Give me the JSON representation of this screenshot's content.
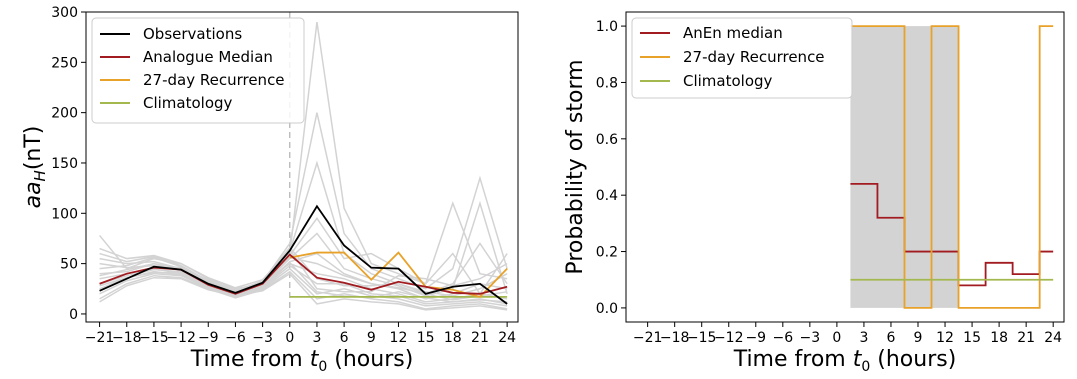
{
  "chart_data": [
    {
      "type": "line",
      "ylabel_main": "aa",
      "ylabel_sub": "H",
      "ylabel_tail": "(nT)",
      "xlabel_main": "Time from ",
      "xlabel_var": "t",
      "xlabel_sub": "0",
      "xlabel_tail": " (hours)",
      "xlim": [
        -22.5,
        25.2
      ],
      "ylim": [
        -8,
        300
      ],
      "xticks": [
        -21,
        -18,
        -15,
        -12,
        -9,
        -6,
        -3,
        0,
        3,
        6,
        9,
        12,
        15,
        18,
        21,
        24
      ],
      "xtick_labels": [
        "−21",
        "−18",
        "−15",
        "−12",
        "−9",
        "−6",
        "−3",
        "0",
        "3",
        "6",
        "9",
        "12",
        "15",
        "18",
        "21",
        "24"
      ],
      "yticks": [
        0,
        50,
        100,
        150,
        200,
        250,
        300
      ],
      "ytick_labels": [
        "0",
        "50",
        "100",
        "150",
        "200",
        "250",
        "300"
      ],
      "t0_line_x": 0,
      "legend_position": "upper-left",
      "colors": {
        "observations": "#000000",
        "analogue": "#a21b21",
        "recurrence": "#e8a229",
        "climatology": "#a3b84e",
        "ensemble": "#d3d3d3",
        "vline": "#b0b0b0"
      },
      "x": [
        -21,
        -18,
        -15,
        -12,
        -9,
        -6,
        -3,
        0,
        3,
        6,
        9,
        12,
        15,
        18,
        21,
        24
      ],
      "series": [
        {
          "name": "Observations",
          "key": "observations",
          "values": [
            23,
            35,
            47,
            44,
            30,
            21,
            31,
            63,
            107,
            68,
            46,
            45,
            20,
            27,
            30,
            10
          ]
        },
        {
          "name": "Analogue Median",
          "key": "analogue",
          "values": [
            30,
            40,
            46,
            44,
            29,
            20,
            30,
            59,
            36,
            31,
            24,
            32,
            27,
            21,
            20,
            27
          ]
        },
        {
          "name": "27-day Recurrence",
          "key": "recurrence",
          "values": [
            null,
            null,
            null,
            null,
            null,
            null,
            null,
            56,
            61,
            61,
            34,
            61,
            27,
            24,
            17,
            45
          ]
        },
        {
          "name": "Climatology",
          "key": "climatology",
          "x": [
            0,
            24
          ],
          "values": [
            17,
            17
          ]
        }
      ],
      "ensemble_members": [
        [
          78,
          45,
          55,
          50,
          35,
          25,
          30,
          60,
          290,
          105,
          50,
          40,
          30,
          60,
          20,
          60
        ],
        [
          60,
          52,
          57,
          48,
          33,
          24,
          32,
          70,
          200,
          80,
          45,
          35,
          25,
          45,
          135,
          45
        ],
        [
          55,
          50,
          52,
          45,
          34,
          22,
          28,
          62,
          150,
          60,
          40,
          30,
          20,
          30,
          70,
          30
        ],
        [
          45,
          48,
          56,
          47,
          30,
          20,
          30,
          58,
          95,
          55,
          60,
          45,
          30,
          110,
          40,
          35
        ],
        [
          40,
          42,
          50,
          43,
          31,
          23,
          29,
          55,
          80,
          45,
          35,
          28,
          18,
          25,
          110,
          20
        ],
        [
          35,
          40,
          45,
          40,
          28,
          19,
          27,
          52,
          60,
          40,
          30,
          25,
          15,
          20,
          30,
          25
        ],
        [
          30,
          38,
          44,
          42,
          29,
          21,
          31,
          50,
          40,
          35,
          25,
          20,
          12,
          15,
          20,
          15
        ],
        [
          25,
          36,
          42,
          39,
          27,
          18,
          26,
          48,
          30,
          30,
          20,
          18,
          10,
          12,
          15,
          10
        ],
        [
          20,
          33,
          40,
          38,
          26,
          17,
          25,
          45,
          20,
          25,
          18,
          15,
          8,
          10,
          12,
          8
        ],
        [
          15,
          30,
          38,
          36,
          25,
          16,
          24,
          42,
          15,
          20,
          15,
          12,
          5,
          8,
          10,
          5
        ],
        [
          50,
          46,
          48,
          46,
          32,
          22,
          33,
          66,
          35,
          28,
          28,
          30,
          22,
          18,
          25,
          40
        ],
        [
          65,
          55,
          58,
          50,
          36,
          26,
          34,
          64,
          25,
          22,
          22,
          38,
          35,
          28,
          35,
          50
        ],
        [
          12,
          28,
          36,
          35,
          24,
          18,
          23,
          40,
          10,
          15,
          12,
          10,
          4,
          6,
          8,
          4
        ],
        [
          38,
          44,
          50,
          45,
          30,
          21,
          28,
          56,
          50,
          38,
          30,
          26,
          20,
          14,
          18,
          22
        ],
        [
          28,
          36,
          41,
          41,
          28,
          19,
          26,
          51,
          22,
          18,
          16,
          22,
          16,
          12,
          14,
          12
        ]
      ]
    },
    {
      "type": "line",
      "ylabel": "Probability of storm",
      "xlabel_main": "Time from ",
      "xlabel_var": "t",
      "xlabel_sub": "0",
      "xlabel_tail": " (hours)",
      "xlim": [
        -23.4,
        25.2
      ],
      "ylim": [
        -0.05,
        1.05
      ],
      "xticks": [
        -21,
        -18,
        -15,
        -12,
        -9,
        -6,
        -3,
        0,
        3,
        6,
        9,
        12,
        15,
        18,
        21,
        24
      ],
      "xtick_labels": [
        "−21",
        "−18",
        "−15",
        "−12",
        "−9",
        "−6",
        "−3",
        "0",
        "3",
        "6",
        "9",
        "12",
        "15",
        "18",
        "21",
        "24"
      ],
      "yticks": [
        0.0,
        0.2,
        0.4,
        0.6,
        0.8,
        1.0
      ],
      "ytick_labels": [
        "0.0",
        "0.2",
        "0.4",
        "0.6",
        "0.8",
        "1.0"
      ],
      "legend_position": "upper-left",
      "colors": {
        "anen": "#a21b21",
        "recurrence": "#e8a229",
        "climatology": "#a3b84e",
        "band": "#d3d3d3"
      },
      "band": {
        "x_start": 1.5,
        "x_end": 13.5,
        "y_low": 0.0,
        "y_high": 1.0,
        "gap_start": 7.5,
        "gap_end": 10.5,
        "gap_y_low": 0.0,
        "gap_y_high": 1.0
      },
      "series": [
        {
          "name": "AnEn median",
          "key": "anen",
          "step_edges": [
            1.5,
            4.5,
            7.5,
            10.5,
            13.5,
            16.5,
            19.5,
            22.5,
            24
          ],
          "values": [
            0.44,
            0.32,
            0.2,
            0.2,
            0.08,
            0.16,
            0.12,
            0.2
          ]
        },
        {
          "name": "27-day Recurrence",
          "key": "recurrence",
          "step_edges": [
            1.5,
            4.5,
            7.5,
            10.5,
            13.5,
            16.5,
            19.5,
            22.5,
            24
          ],
          "values": [
            1.0,
            1.0,
            0.0,
            1.0,
            0.0,
            0.0,
            0.0,
            1.0
          ]
        },
        {
          "name": "Climatology",
          "key": "climatology",
          "x": [
            1.5,
            24
          ],
          "values": [
            0.1,
            0.1
          ]
        }
      ]
    }
  ]
}
